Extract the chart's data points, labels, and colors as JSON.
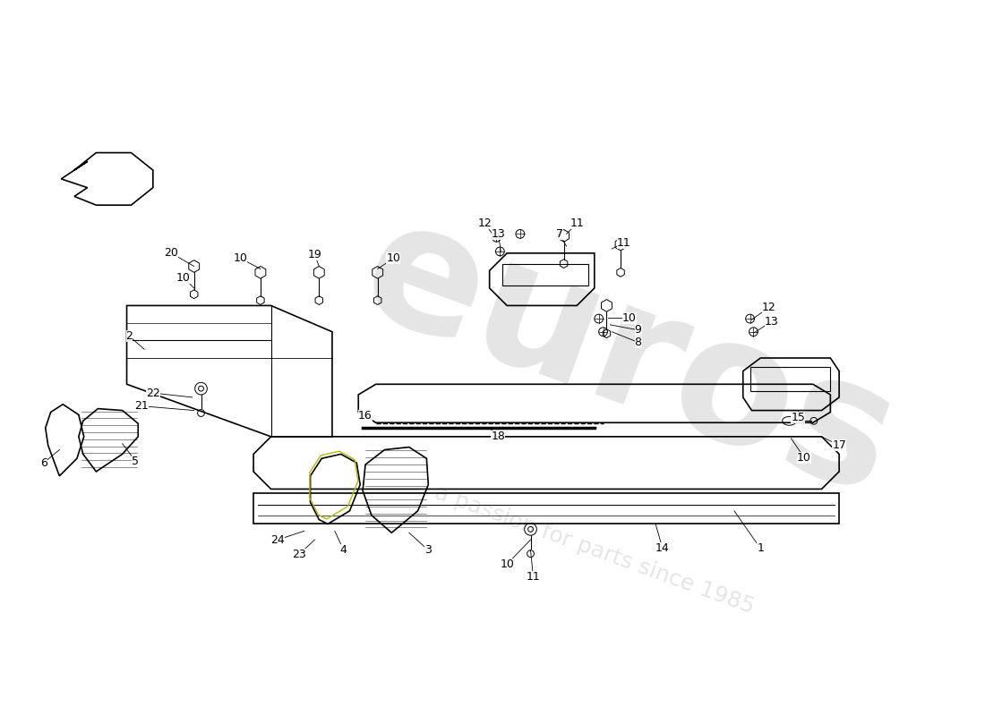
{
  "bg_color": "#ffffff",
  "lc": "#000000",
  "lw": 1.2,
  "fs": 9,
  "wm_color": "#cccccc",
  "wm_alpha": 0.5
}
